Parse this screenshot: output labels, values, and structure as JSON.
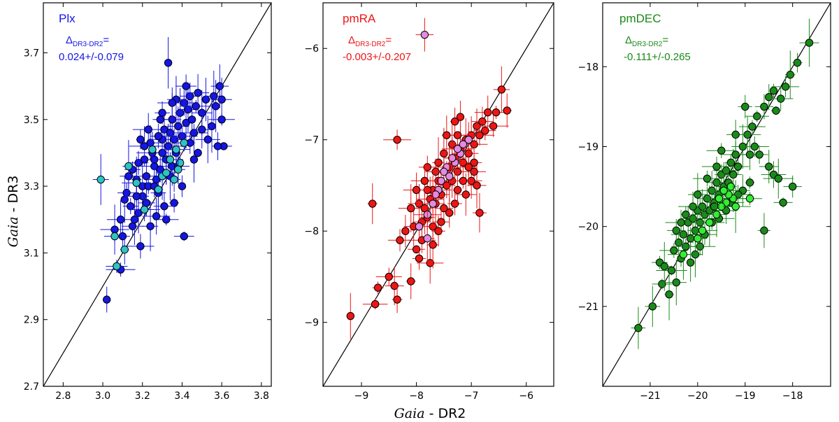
{
  "figure": {
    "xlabel_italic": "Gaia",
    "xlabel_rest": " - DR2",
    "ylabel_italic": "Gaia",
    "ylabel_rest": " - DR3"
  },
  "chart_data": [
    {
      "type": "scatter",
      "title": "Plx",
      "delta_symbol": "Δ",
      "delta_subscript": "DR3-DR2",
      "delta_eq": "=",
      "delta_value": "0.024+/-0.079",
      "color": "#1515e6",
      "highlight_color": "#2ec4c4",
      "xlim": [
        2.7,
        3.85
      ],
      "ylim": [
        2.7,
        3.85
      ],
      "xticks": [
        2.8,
        3.0,
        3.2,
        3.4,
        3.6,
        3.8
      ],
      "yticks": [
        2.7,
        2.9,
        3.1,
        3.3,
        3.5,
        3.7
      ],
      "tick_decimals": 1,
      "main_points": [
        [
          3.06,
          3.17
        ],
        [
          3.02,
          2.96
        ],
        [
          3.09,
          3.05
        ],
        [
          3.1,
          3.15
        ],
        [
          3.15,
          3.18
        ],
        [
          3.16,
          3.2
        ],
        [
          3.14,
          3.24
        ],
        [
          3.12,
          3.28
        ],
        [
          3.18,
          3.22
        ],
        [
          3.2,
          3.27
        ],
        [
          3.2,
          3.3
        ],
        [
          3.17,
          3.32
        ],
        [
          3.15,
          3.35
        ],
        [
          3.18,
          3.37
        ],
        [
          3.22,
          3.33
        ],
        [
          3.23,
          3.3
        ],
        [
          3.21,
          3.38
        ],
        [
          3.25,
          3.4
        ],
        [
          3.24,
          3.43
        ],
        [
          3.26,
          3.36
        ],
        [
          3.27,
          3.32
        ],
        [
          3.28,
          3.28
        ],
        [
          3.29,
          3.35
        ],
        [
          3.3,
          3.4
        ],
        [
          3.3,
          3.44
        ],
        [
          3.31,
          3.47
        ],
        [
          3.32,
          3.38
        ],
        [
          3.33,
          3.42
        ],
        [
          3.34,
          3.46
        ],
        [
          3.35,
          3.5
        ],
        [
          3.36,
          3.44
        ],
        [
          3.37,
          3.4
        ],
        [
          3.38,
          3.48
        ],
        [
          3.39,
          3.52
        ],
        [
          3.4,
          3.45
        ],
        [
          3.41,
          3.55
        ],
        [
          3.42,
          3.49
        ],
        [
          3.43,
          3.53
        ],
        [
          3.44,
          3.57
        ],
        [
          3.45,
          3.5
        ],
        [
          3.46,
          3.46
        ],
        [
          3.47,
          3.54
        ],
        [
          3.48,
          3.58
        ],
        [
          3.5,
          3.52
        ],
        [
          3.52,
          3.56
        ],
        [
          3.55,
          3.48
        ],
        [
          3.57,
          3.54
        ],
        [
          3.59,
          3.6
        ],
        [
          3.6,
          3.5
        ],
        [
          3.61,
          3.42
        ],
        [
          3.58,
          3.42
        ],
        [
          3.4,
          3.3
        ],
        [
          3.36,
          3.25
        ],
        [
          3.32,
          3.2
        ],
        [
          3.33,
          3.67
        ],
        [
          3.41,
          3.15
        ],
        [
          3.26,
          3.38
        ],
        [
          3.28,
          3.45
        ],
        [
          3.21,
          3.42
        ],
        [
          3.35,
          3.36
        ],
        [
          3.34,
          3.33
        ],
        [
          3.38,
          3.36
        ],
        [
          3.44,
          3.43
        ],
        [
          3.46,
          3.38
        ],
        [
          3.48,
          3.4
        ],
        [
          3.19,
          3.44
        ],
        [
          3.23,
          3.47
        ],
        [
          3.3,
          3.52
        ],
        [
          3.37,
          3.56
        ],
        [
          3.13,
          3.33
        ],
        [
          3.11,
          3.26
        ],
        [
          3.31,
          3.24
        ],
        [
          3.27,
          3.21
        ],
        [
          3.24,
          3.18
        ],
        [
          3.19,
          3.12
        ],
        [
          3.5,
          3.47
        ],
        [
          3.53,
          3.44
        ],
        [
          3.56,
          3.57
        ],
        [
          3.6,
          3.56
        ],
        [
          3.29,
          3.5
        ],
        [
          3.35,
          3.55
        ],
        [
          3.42,
          3.6
        ],
        [
          3.17,
          3.27
        ],
        [
          3.22,
          3.25
        ],
        [
          3.09,
          3.2
        ],
        [
          3.26,
          3.3
        ]
      ],
      "highlight_points": [
        [
          2.99,
          3.32
        ],
        [
          3.06,
          3.15
        ],
        [
          3.07,
          3.06
        ],
        [
          3.11,
          3.11
        ],
        [
          3.13,
          3.36
        ],
        [
          3.17,
          3.31
        ],
        [
          3.21,
          3.23
        ],
        [
          3.25,
          3.41
        ],
        [
          3.28,
          3.29
        ],
        [
          3.3,
          3.33
        ],
        [
          3.32,
          3.34
        ],
        [
          3.34,
          3.38
        ],
        [
          3.36,
          3.32
        ],
        [
          3.37,
          3.41
        ],
        [
          3.39,
          3.37
        ],
        [
          3.41,
          3.43
        ],
        [
          3.38,
          3.35
        ]
      ]
    },
    {
      "type": "scatter",
      "title": "pmRA",
      "delta_symbol": "Δ",
      "delta_subscript": "DR3-DR2",
      "delta_eq": "=",
      "delta_value": "-0.003+/-0.207",
      "color": "#ee1515",
      "highlight_color": "#e28be2",
      "xlim": [
        -9.7,
        -5.5
      ],
      "ylim": [
        -9.7,
        -5.5
      ],
      "xticks": [
        -9,
        -8,
        -7,
        -6
      ],
      "yticks": [
        -9,
        -8,
        -7,
        -6
      ],
      "tick_decimals": 0,
      "main_points": [
        [
          -9.2,
          -8.93
        ],
        [
          -8.75,
          -8.8
        ],
        [
          -8.7,
          -8.62
        ],
        [
          -8.5,
          -8.5
        ],
        [
          -8.4,
          -8.6
        ],
        [
          -8.35,
          -8.75
        ],
        [
          -8.1,
          -8.55
        ],
        [
          -8.8,
          -7.7
        ],
        [
          -8.35,
          -7.0
        ],
        [
          -8.3,
          -8.1
        ],
        [
          -8.2,
          -8.0
        ],
        [
          -8.0,
          -8.2
        ],
        [
          -7.95,
          -7.7
        ],
        [
          -7.9,
          -7.9
        ],
        [
          -7.85,
          -7.75
        ],
        [
          -7.8,
          -7.85
        ],
        [
          -7.75,
          -7.65
        ],
        [
          -7.7,
          -7.55
        ],
        [
          -7.7,
          -7.95
        ],
        [
          -7.65,
          -7.7
        ],
        [
          -7.6,
          -7.45
        ],
        [
          -7.55,
          -7.6
        ],
        [
          -7.5,
          -7.35
        ],
        [
          -7.5,
          -7.75
        ],
        [
          -7.45,
          -7.5
        ],
        [
          -7.4,
          -7.3
        ],
        [
          -7.35,
          -7.45
        ],
        [
          -7.3,
          -7.2
        ],
        [
          -7.25,
          -7.35
        ],
        [
          -7.2,
          -7.1
        ],
        [
          -7.15,
          -7.25
        ],
        [
          -7.1,
          -7.0
        ],
        [
          -7.05,
          -7.15
        ],
        [
          -7.0,
          -6.95
        ],
        [
          -6.95,
          -7.05
        ],
        [
          -6.9,
          -6.85
        ],
        [
          -6.85,
          -6.95
        ],
        [
          -6.8,
          -6.8
        ],
        [
          -6.75,
          -6.9
        ],
        [
          -6.7,
          -6.7
        ],
        [
          -6.6,
          -6.85
        ],
        [
          -6.55,
          -6.7
        ],
        [
          -6.45,
          -6.45
        ],
        [
          -6.35,
          -6.68
        ],
        [
          -7.2,
          -6.75
        ],
        [
          -7.3,
          -6.8
        ],
        [
          -7.0,
          -7.45
        ],
        [
          -6.9,
          -7.5
        ],
        [
          -6.85,
          -7.8
        ],
        [
          -7.1,
          -7.6
        ],
        [
          -7.3,
          -7.7
        ],
        [
          -7.6,
          -7.25
        ],
        [
          -7.8,
          -7.3
        ],
        [
          -7.9,
          -8.1
        ],
        [
          -7.6,
          -8.0
        ],
        [
          -8.05,
          -7.95
        ],
        [
          -7.95,
          -8.3
        ],
        [
          -7.75,
          -8.35
        ],
        [
          -7.8,
          -7.55
        ],
        [
          -7.4,
          -7.8
        ],
        [
          -7.5,
          -7.15
        ],
        [
          -7.25,
          -6.95
        ],
        [
          -7.15,
          -7.45
        ],
        [
          -6.95,
          -7.25
        ],
        [
          -7.05,
          -7.3
        ],
        [
          -7.35,
          -7.05
        ],
        [
          -7.45,
          -6.95
        ],
        [
          -7.65,
          -7.35
        ],
        [
          -7.85,
          -7.45
        ],
        [
          -8.1,
          -7.75
        ],
        [
          -8.0,
          -7.55
        ],
        [
          -7.7,
          -8.15
        ],
        [
          -7.55,
          -7.9
        ],
        [
          -7.25,
          -7.55
        ],
        [
          -6.95,
          -7.35
        ]
      ],
      "highlight_points": [
        [
          -7.85,
          -5.85
        ],
        [
          -7.05,
          -7.0
        ],
        [
          -7.2,
          -7.15
        ],
        [
          -7.3,
          -7.25
        ],
        [
          -7.45,
          -7.3
        ],
        [
          -7.5,
          -7.35
        ],
        [
          -7.55,
          -7.45
        ],
        [
          -7.6,
          -7.55
        ],
        [
          -7.65,
          -7.6
        ],
        [
          -7.7,
          -7.7
        ],
        [
          -7.35,
          -7.2
        ],
        [
          -7.25,
          -7.1
        ],
        [
          -7.8,
          -7.82
        ],
        [
          -7.95,
          -7.95
        ],
        [
          -7.8,
          -8.08
        ],
        [
          -7.4,
          -7.4
        ],
        [
          -7.15,
          -7.05
        ]
      ]
    },
    {
      "type": "scatter",
      "title": "pmDEC",
      "delta_symbol": "Δ",
      "delta_subscript": "DR3-DR2",
      "delta_eq": "=",
      "delta_value": "-0.111+/-0.265",
      "color": "#1a8a1a",
      "highlight_color": "#33ee33",
      "xlim": [
        -22,
        -17.2
      ],
      "ylim": [
        -22,
        -17.2
      ],
      "xticks": [
        -21,
        -20,
        -19,
        -18
      ],
      "yticks": [
        -21,
        -20,
        -19,
        -18
      ],
      "tick_decimals": 0,
      "main_points": [
        [
          -21.25,
          -21.27
        ],
        [
          -20.95,
          -21.0
        ],
        [
          -20.75,
          -20.72
        ],
        [
          -20.6,
          -20.85
        ],
        [
          -20.8,
          -20.45
        ],
        [
          -20.7,
          -20.5
        ],
        [
          -20.55,
          -20.55
        ],
        [
          -20.5,
          -20.3
        ],
        [
          -20.45,
          -20.7
        ],
        [
          -20.4,
          -20.2
        ],
        [
          -20.35,
          -20.4
        ],
        [
          -20.3,
          -20.1
        ],
        [
          -20.25,
          -20.25
        ],
        [
          -20.2,
          -19.95
        ],
        [
          -20.15,
          -20.15
        ],
        [
          -20.1,
          -19.9
        ],
        [
          -20.05,
          -20.05
        ],
        [
          -20.0,
          -19.8
        ],
        [
          -19.95,
          -19.95
        ],
        [
          -19.9,
          -19.75
        ],
        [
          -19.85,
          -19.85
        ],
        [
          -19.8,
          -19.65
        ],
        [
          -19.75,
          -19.8
        ],
        [
          -19.7,
          -19.55
        ],
        [
          -19.65,
          -19.7
        ],
        [
          -19.6,
          -19.45
        ],
        [
          -19.55,
          -19.6
        ],
        [
          -19.5,
          -19.35
        ],
        [
          -19.45,
          -19.5
        ],
        [
          -19.4,
          -19.3
        ],
        [
          -19.35,
          -19.45
        ],
        [
          -19.3,
          -19.2
        ],
        [
          -19.25,
          -19.35
        ],
        [
          -19.2,
          -19.1
        ],
        [
          -19.15,
          -19.25
        ],
        [
          -19.05,
          -19.0
        ],
        [
          -18.95,
          -18.85
        ],
        [
          -18.85,
          -18.75
        ],
        [
          -18.75,
          -18.62
        ],
        [
          -18.6,
          -18.5
        ],
        [
          -18.5,
          -18.38
        ],
        [
          -18.4,
          -18.3
        ],
        [
          -18.35,
          -18.55
        ],
        [
          -18.25,
          -18.4
        ],
        [
          -18.15,
          -18.25
        ],
        [
          -18.05,
          -18.1
        ],
        [
          -17.9,
          -17.95
        ],
        [
          -17.65,
          -17.7
        ],
        [
          -18.8,
          -19.0
        ],
        [
          -18.9,
          -19.1
        ],
        [
          -18.7,
          -19.1
        ],
        [
          -18.5,
          -19.25
        ],
        [
          -18.4,
          -19.35
        ],
        [
          -18.3,
          -19.4
        ],
        [
          -18.2,
          -19.7
        ],
        [
          -18.0,
          -19.5
        ],
        [
          -18.6,
          -20.05
        ],
        [
          -18.9,
          -19.45
        ],
        [
          -19.05,
          -19.55
        ],
        [
          -19.15,
          -19.6
        ],
        [
          -19.3,
          -19.7
        ],
        [
          -19.4,
          -19.8
        ],
        [
          -19.55,
          -19.9
        ],
        [
          -19.7,
          -19.95
        ],
        [
          -19.85,
          -20.1
        ],
        [
          -19.95,
          -20.25
        ],
        [
          -20.05,
          -20.35
        ],
        [
          -20.1,
          -19.75
        ],
        [
          -20.25,
          -19.85
        ],
        [
          -20.35,
          -19.95
        ],
        [
          -20.45,
          -20.05
        ],
        [
          -19.6,
          -19.25
        ],
        [
          -19.5,
          -19.05
        ],
        [
          -19.8,
          -19.4
        ],
        [
          -20.0,
          -19.6
        ],
        [
          -19.2,
          -18.85
        ],
        [
          -19.0,
          -18.5
        ],
        [
          -19.65,
          -19.75
        ],
        [
          -20.15,
          -20.45
        ]
      ],
      "highlight_points": [
        [
          -19.3,
          -19.5
        ],
        [
          -19.25,
          -19.65
        ],
        [
          -19.35,
          -19.6
        ],
        [
          -19.2,
          -19.75
        ],
        [
          -19.4,
          -19.7
        ],
        [
          -19.5,
          -19.75
        ],
        [
          -18.9,
          -19.65
        ],
        [
          -19.6,
          -19.85
        ],
        [
          -19.75,
          -19.95
        ],
        [
          -19.9,
          -20.05
        ],
        [
          -20.0,
          -20.15
        ],
        [
          -20.3,
          -20.35
        ],
        [
          -19.45,
          -19.55
        ],
        [
          -19.55,
          -19.65
        ]
      ]
    }
  ]
}
